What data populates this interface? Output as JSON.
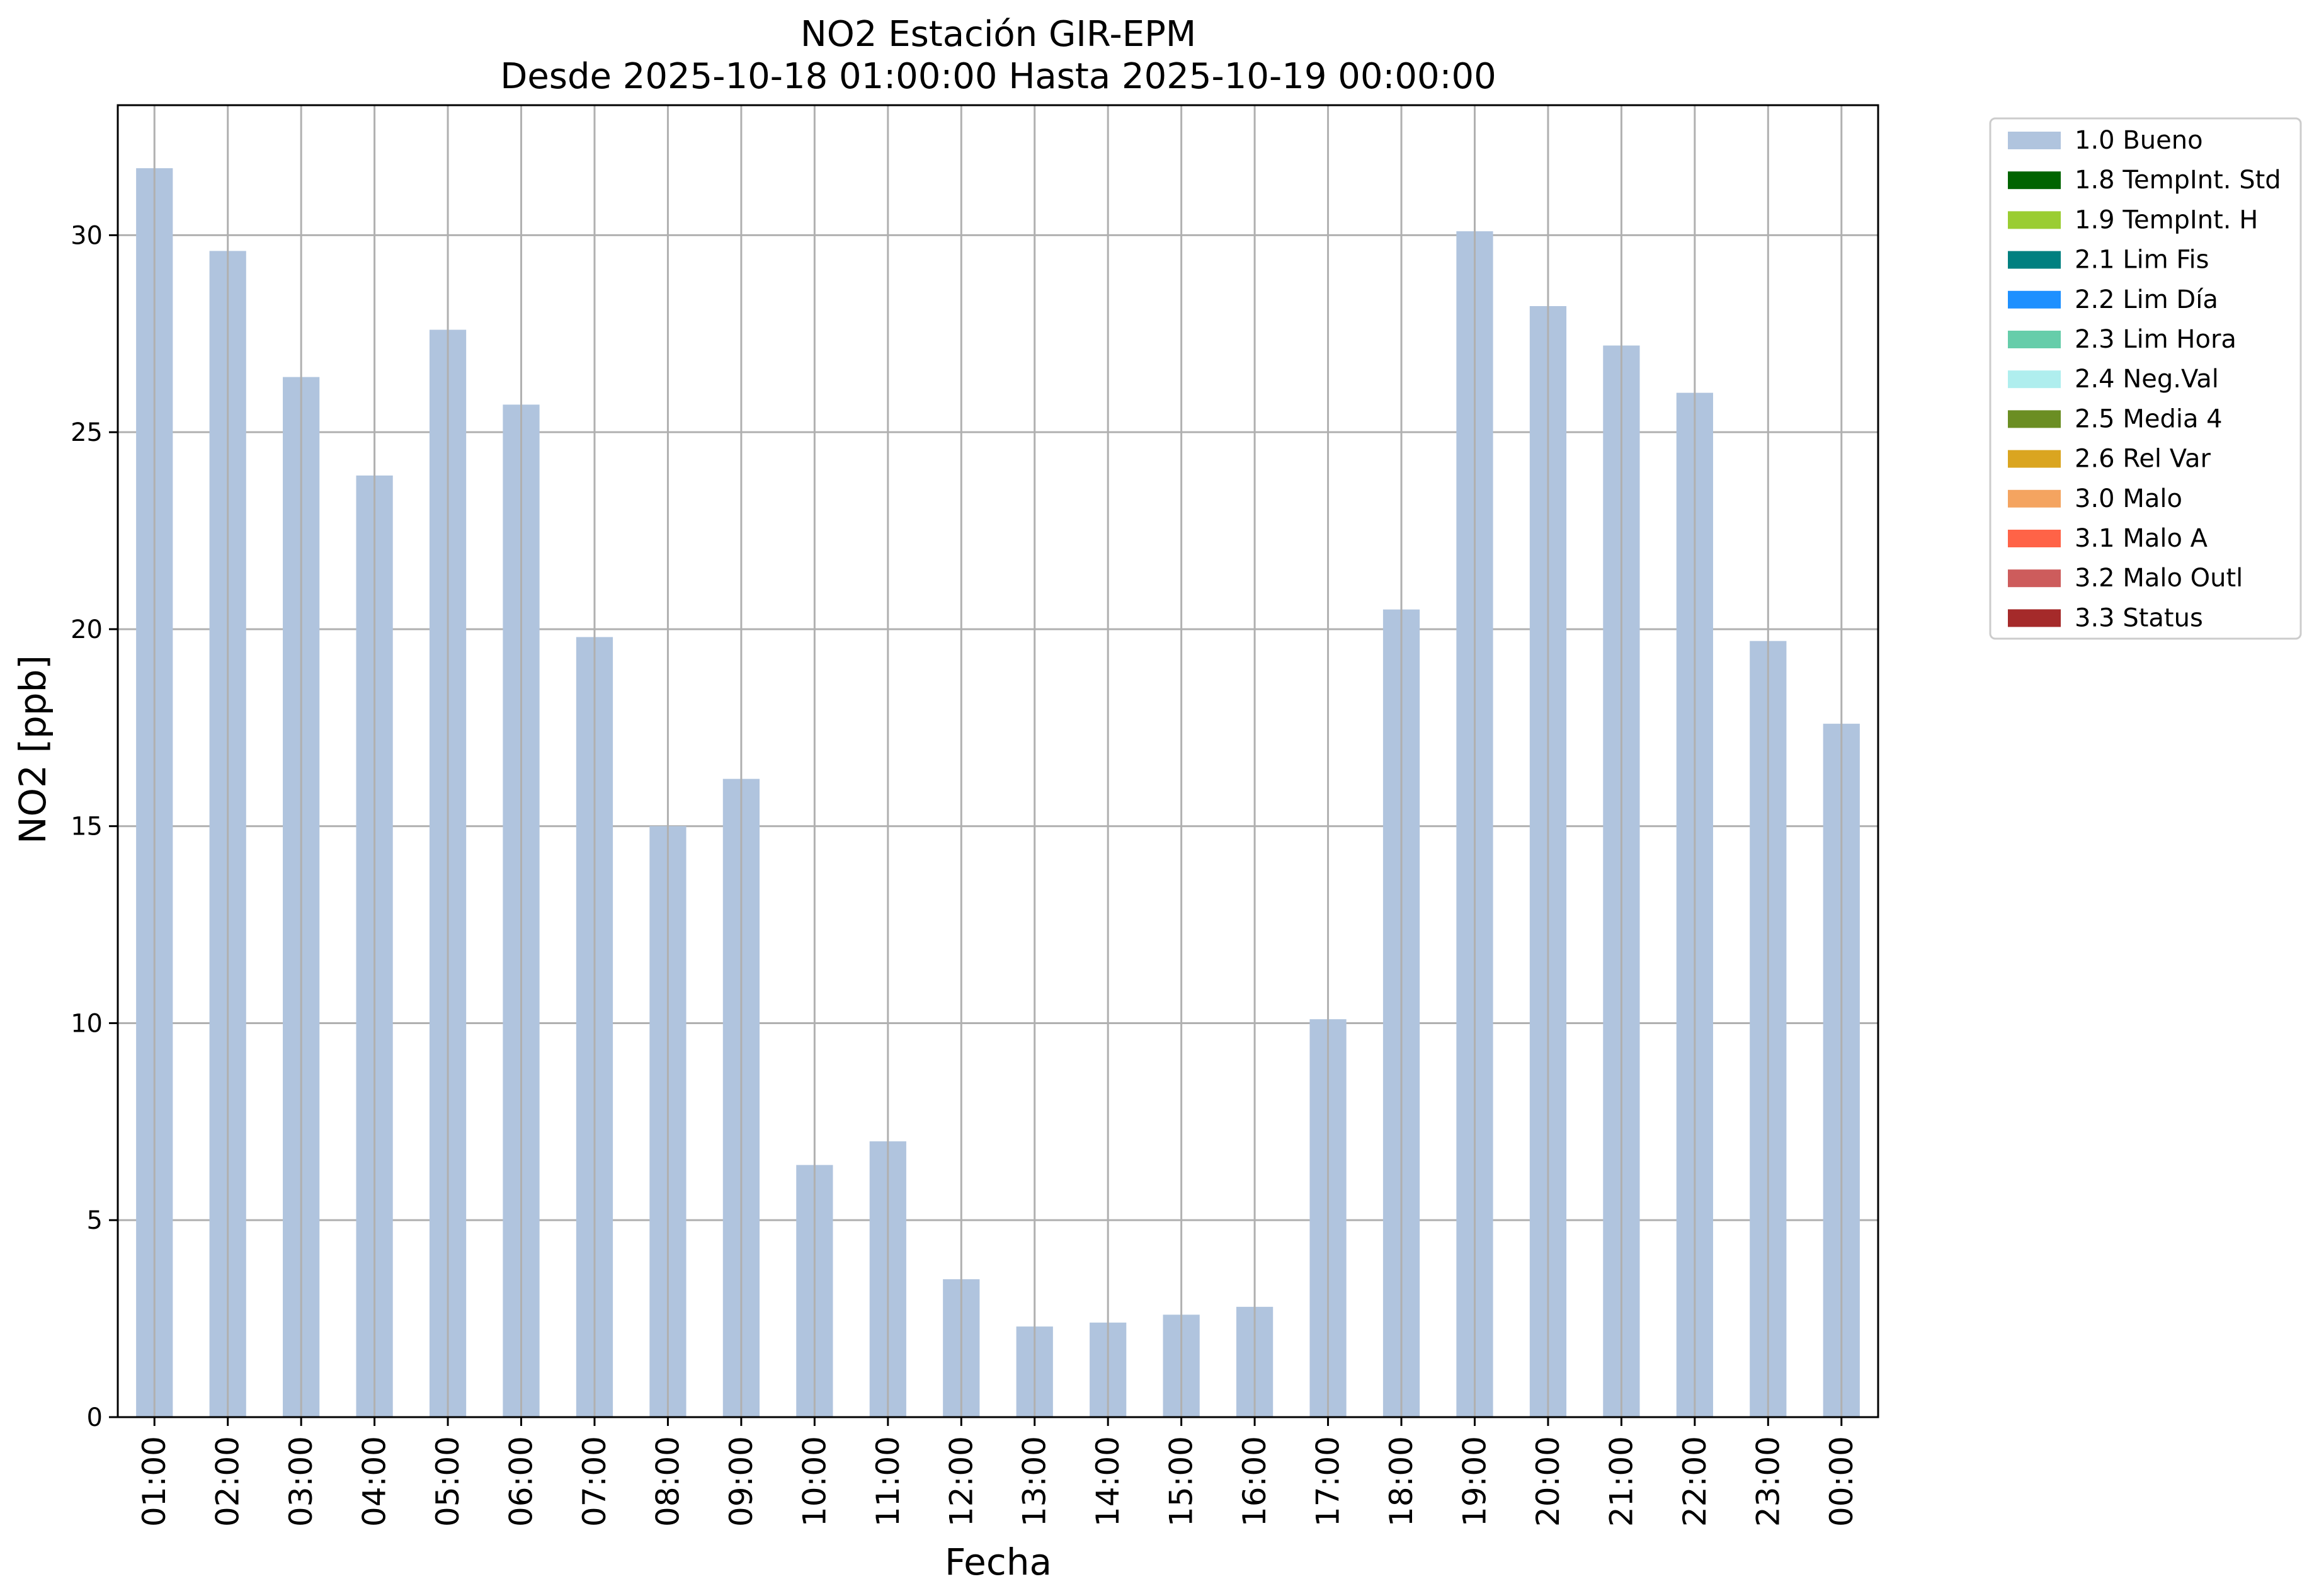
{
  "chart_data": {
    "type": "bar",
    "title": "NO2 Estación GIR-EPM",
    "subtitle": "Desde 2025-10-18 01:00:00 Hasta 2025-10-19 00:00:00",
    "xlabel": "Fecha",
    "ylabel": "NO2 [ppb]",
    "ylim": [
      0,
      33.3
    ],
    "yticks": [
      0,
      5,
      10,
      15,
      20,
      25,
      30
    ],
    "grid": true,
    "legend_position": "outside-top-right",
    "bar_color": "#b0c4de",
    "categories": [
      "01:00",
      "02:00",
      "03:00",
      "04:00",
      "05:00",
      "06:00",
      "07:00",
      "08:00",
      "09:00",
      "10:00",
      "11:00",
      "12:00",
      "13:00",
      "14:00",
      "15:00",
      "16:00",
      "17:00",
      "18:00",
      "19:00",
      "20:00",
      "21:00",
      "22:00",
      "23:00",
      "00:00"
    ],
    "series": [
      {
        "name": "1.0 Bueno",
        "values": [
          31.7,
          29.6,
          26.4,
          23.9,
          27.6,
          25.7,
          19.8,
          15.0,
          16.2,
          6.4,
          7.0,
          3.5,
          2.3,
          2.4,
          2.6,
          2.8,
          10.1,
          20.5,
          30.1,
          28.2,
          27.2,
          26.0,
          19.7,
          17.6
        ]
      }
    ],
    "legend": [
      {
        "label": "1.0 Bueno",
        "color": "#b0c4de"
      },
      {
        "label": "1.8 TempInt. Std",
        "color": "#006400"
      },
      {
        "label": "1.9 TempInt. H",
        "color": "#9acd32"
      },
      {
        "label": "2.1 Lim Fis",
        "color": "#008080"
      },
      {
        "label": "2.2 Lim Día",
        "color": "#1e90ff"
      },
      {
        "label": "2.3 Lim Hora",
        "color": "#66cdaa"
      },
      {
        "label": "2.4 Neg.Val",
        "color": "#afeeee"
      },
      {
        "label": "2.5 Media 4",
        "color": "#6b8e23"
      },
      {
        "label": "2.6 Rel Var",
        "color": "#daa520"
      },
      {
        "label": "3.0 Malo",
        "color": "#f4a460"
      },
      {
        "label": "3.1 Malo A",
        "color": "#ff6347"
      },
      {
        "label": "3.2 Malo Outl",
        "color": "#cd5c5c"
      },
      {
        "label": "3.3 Status",
        "color": "#a52a2a"
      }
    ]
  }
}
